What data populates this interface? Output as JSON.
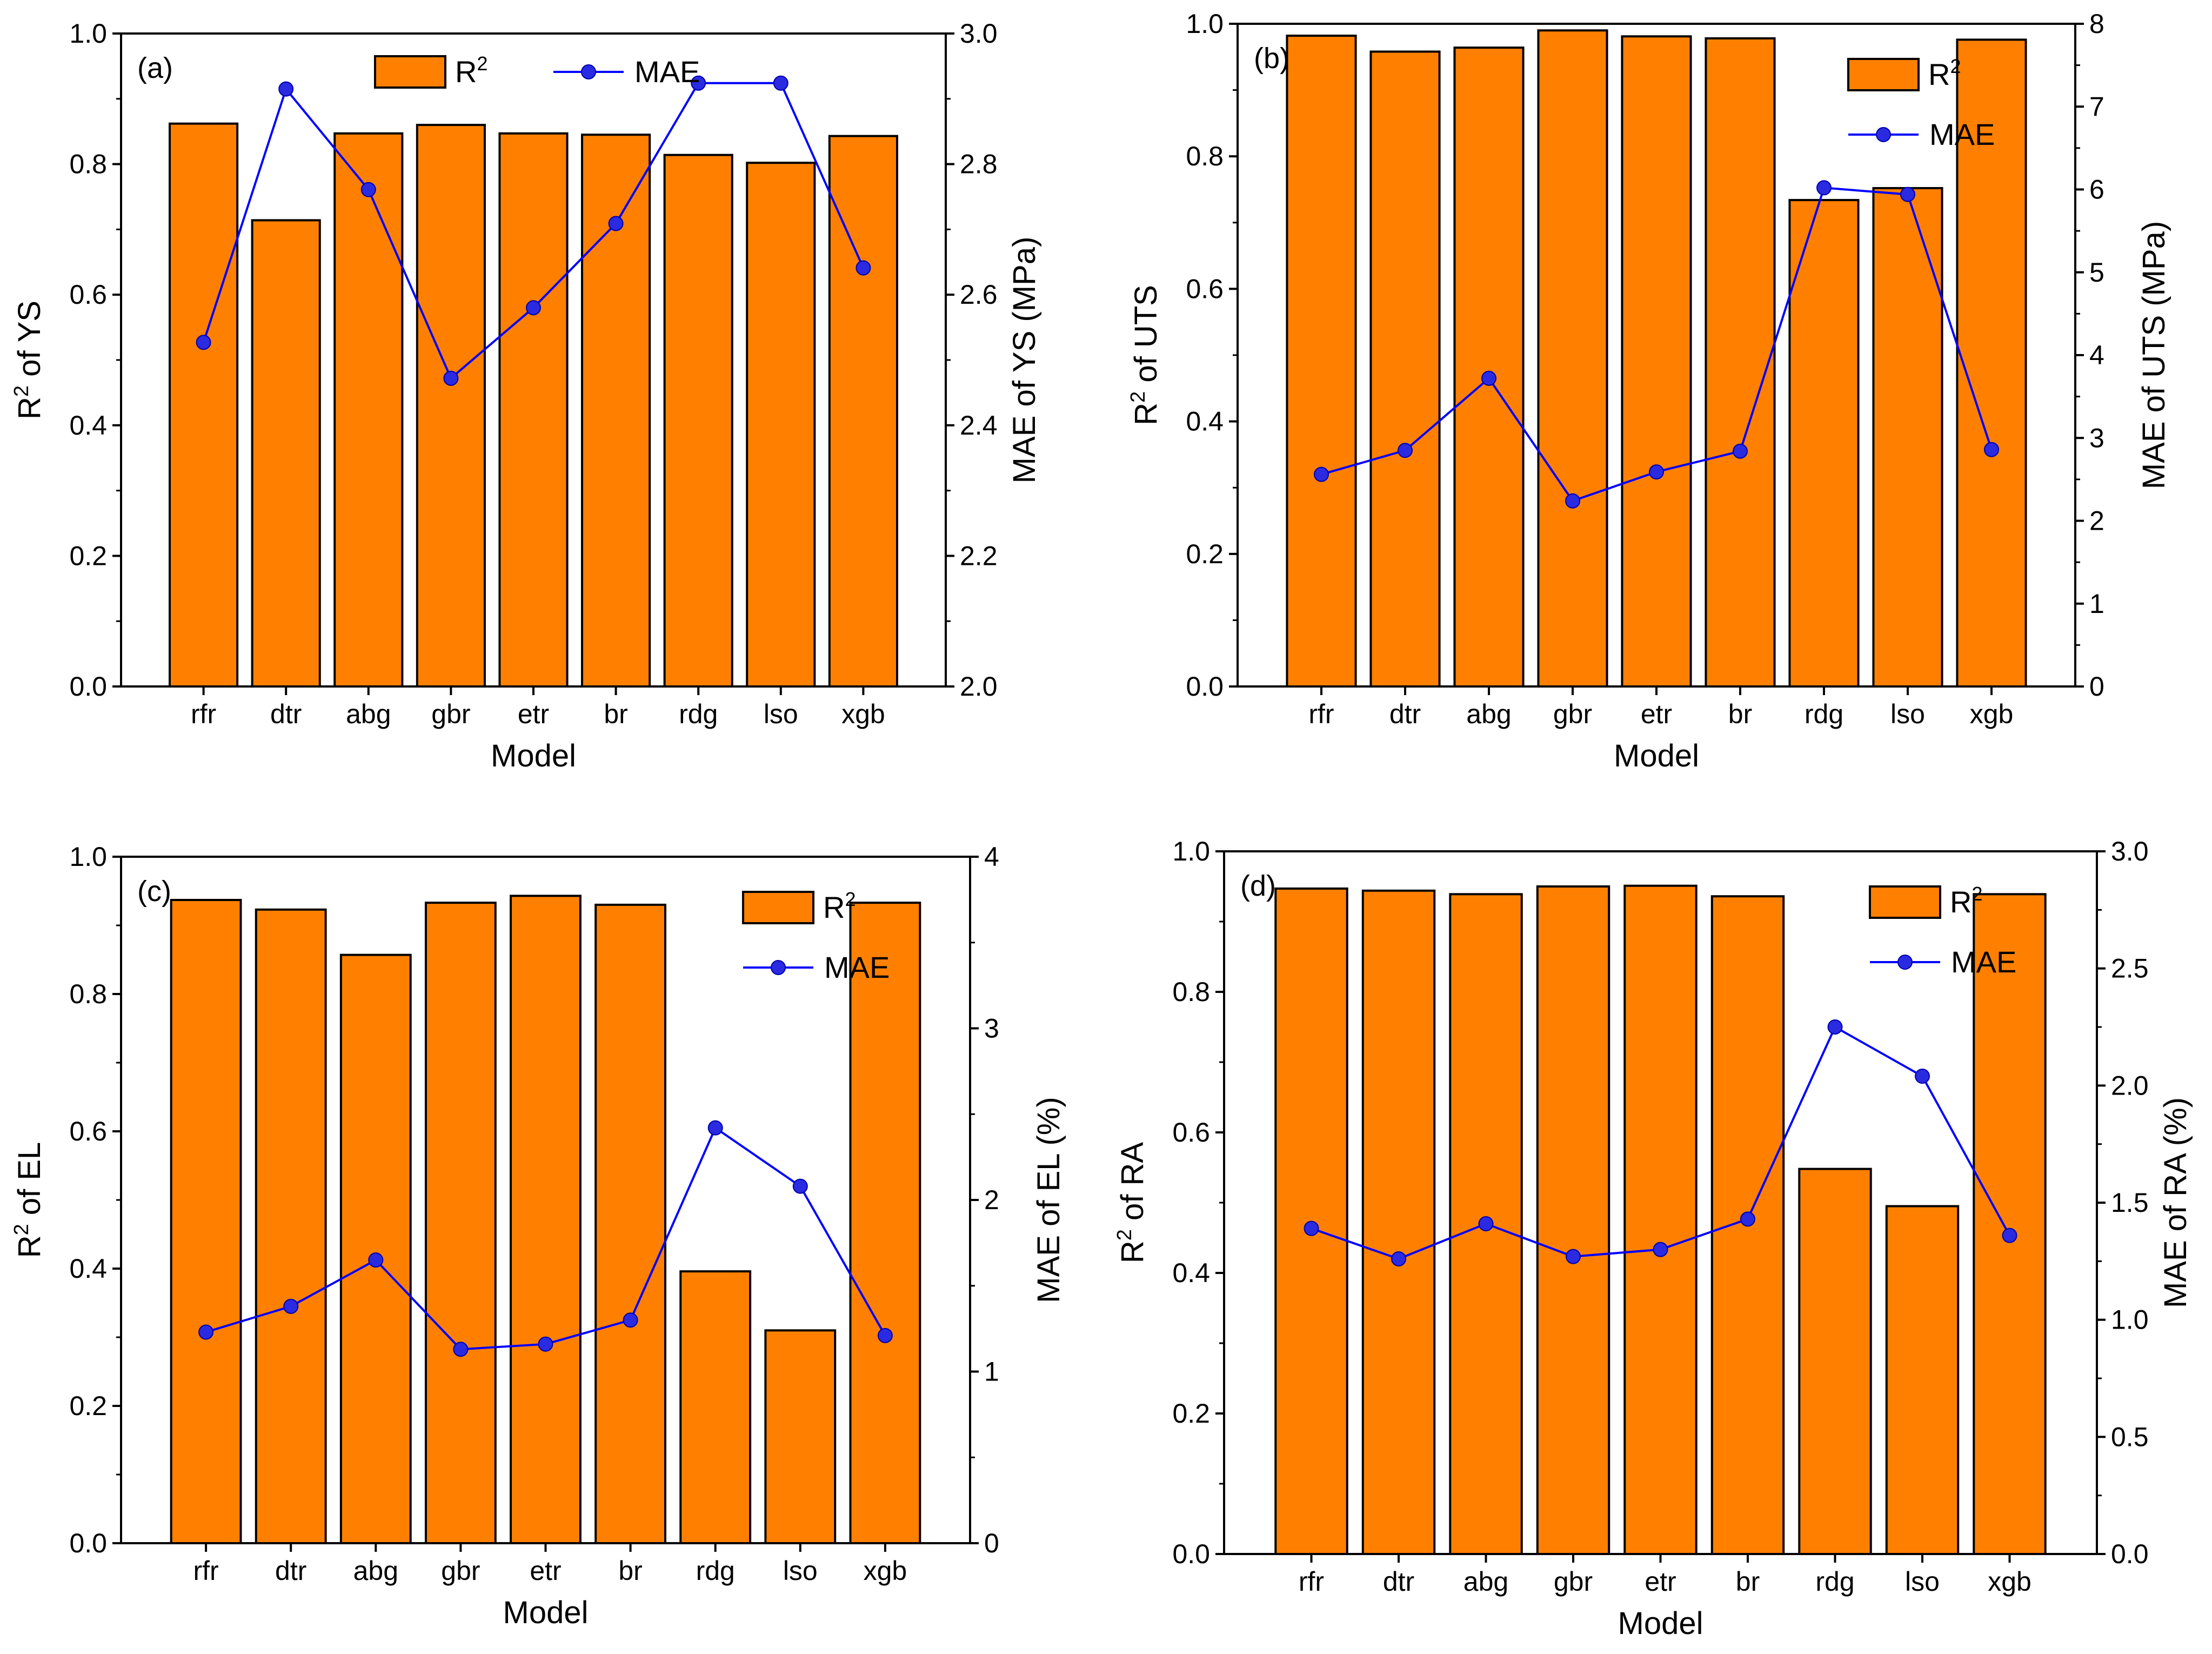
{
  "chart_data": [
    {
      "panel": "(a)",
      "type": "bar+line",
      "xlabel": "Model",
      "categories": [
        "rfr",
        "dtr",
        "abg",
        "gbr",
        "etr",
        "br",
        "rdg",
        "lso",
        "xgb"
      ],
      "left_axis": {
        "label_base": "R",
        "label_sup": "2",
        "label_rest": " of YS",
        "min": 0.0,
        "max": 1.0,
        "ticks": [
          "0.0",
          "0.2",
          "0.4",
          "0.6",
          "0.8",
          "1.0"
        ]
      },
      "right_axis": {
        "label": "MAE of YS (MPa)",
        "min": 2.0,
        "max": 3.0,
        "ticks": [
          "2.0",
          "2.2",
          "2.4",
          "2.6",
          "2.8",
          "3.0"
        ]
      },
      "bar_series": {
        "name": "R2",
        "label_base": "R",
        "label_sup": "2",
        "values": [
          0.862,
          0.714,
          0.847,
          0.86,
          0.847,
          0.845,
          0.814,
          0.802,
          0.843
        ]
      },
      "line_series": {
        "name": "MAE",
        "values": [
          2.527,
          2.915,
          2.761,
          2.472,
          2.58,
          2.709,
          2.924,
          2.924,
          2.641
        ]
      },
      "legend": "top-center-horizontal"
    },
    {
      "panel": "(b)",
      "type": "bar+line",
      "xlabel": "Model",
      "categories": [
        "rfr",
        "dtr",
        "abg",
        "gbr",
        "etr",
        "br",
        "rdg",
        "lso",
        "xgb"
      ],
      "left_axis": {
        "label_base": "R",
        "label_sup": "2",
        "label_rest": " of UTS",
        "min": 0.0,
        "max": 1.0,
        "ticks": [
          "0.0",
          "0.2",
          "0.4",
          "0.6",
          "0.8",
          "1.0"
        ]
      },
      "right_axis": {
        "label": "MAE of UTS (MPa)",
        "min": 0,
        "max": 8,
        "ticks": [
          "0",
          "1",
          "2",
          "3",
          "4",
          "5",
          "6",
          "7",
          "8"
        ]
      },
      "bar_series": {
        "name": "R2",
        "label_base": "R",
        "label_sup": "2",
        "values": [
          0.982,
          0.958,
          0.964,
          0.99,
          0.981,
          0.978,
          0.734,
          0.752,
          0.976
        ]
      },
      "line_series": {
        "name": "MAE",
        "values": [
          2.56,
          2.85,
          3.72,
          2.24,
          2.59,
          2.84,
          6.02,
          5.94,
          2.86
        ]
      },
      "legend": "top-right-vertical"
    },
    {
      "panel": "(c)",
      "type": "bar+line",
      "xlabel": "Model",
      "categories": [
        "rfr",
        "dtr",
        "abg",
        "gbr",
        "etr",
        "br",
        "rdg",
        "lso",
        "xgb"
      ],
      "left_axis": {
        "label_base": "R",
        "label_sup": "2",
        "label_rest": " of EL",
        "min": 0.0,
        "max": 1.0,
        "ticks": [
          "0.0",
          "0.2",
          "0.4",
          "0.6",
          "0.8",
          "1.0"
        ]
      },
      "right_axis": {
        "label": "MAE of EL (%)",
        "min": 0,
        "max": 4,
        "ticks": [
          "0",
          "1",
          "2",
          "3",
          "4"
        ]
      },
      "bar_series": {
        "name": "R2",
        "label_base": "R",
        "label_sup": "2",
        "values": [
          0.937,
          0.923,
          0.857,
          0.933,
          0.943,
          0.93,
          0.396,
          0.31,
          0.933
        ]
      },
      "line_series": {
        "name": "MAE",
        "values": [
          1.23,
          1.38,
          1.65,
          1.13,
          1.16,
          1.3,
          2.42,
          2.08,
          1.21
        ]
      },
      "legend": "top-right-vertical"
    },
    {
      "panel": "(d)",
      "type": "bar+line",
      "xlabel": "Model",
      "categories": [
        "rfr",
        "dtr",
        "abg",
        "gbr",
        "etr",
        "br",
        "rdg",
        "lso",
        "xgb"
      ],
      "left_axis": {
        "label_base": "R",
        "label_sup": "2",
        "label_rest": " of RA",
        "min": 0.0,
        "max": 1.0,
        "ticks": [
          "0.0",
          "0.2",
          "0.4",
          "0.6",
          "0.8",
          "1.0"
        ]
      },
      "right_axis": {
        "label": "MAE of RA (%)",
        "min": 0.0,
        "max": 3.0,
        "ticks": [
          "0.0",
          "0.5",
          "1.0",
          "1.5",
          "2.0",
          "2.5",
          "3.0"
        ]
      },
      "bar_series": {
        "name": "R2",
        "label_base": "R",
        "label_sup": "2",
        "values": [
          0.947,
          0.944,
          0.939,
          0.95,
          0.951,
          0.936,
          0.548,
          0.495,
          0.939
        ]
      },
      "line_series": {
        "name": "MAE",
        "values": [
          1.39,
          1.26,
          1.41,
          1.27,
          1.3,
          1.43,
          2.25,
          2.04,
          1.36
        ]
      },
      "legend": "top-right-vertical"
    }
  ],
  "legend_mae_label": "MAE",
  "colors": {
    "bar_fill": "#FF8000",
    "bar_edge": "#000000",
    "line": "#0000FF",
    "marker": "#2A2AE0",
    "axis": "#000000"
  }
}
